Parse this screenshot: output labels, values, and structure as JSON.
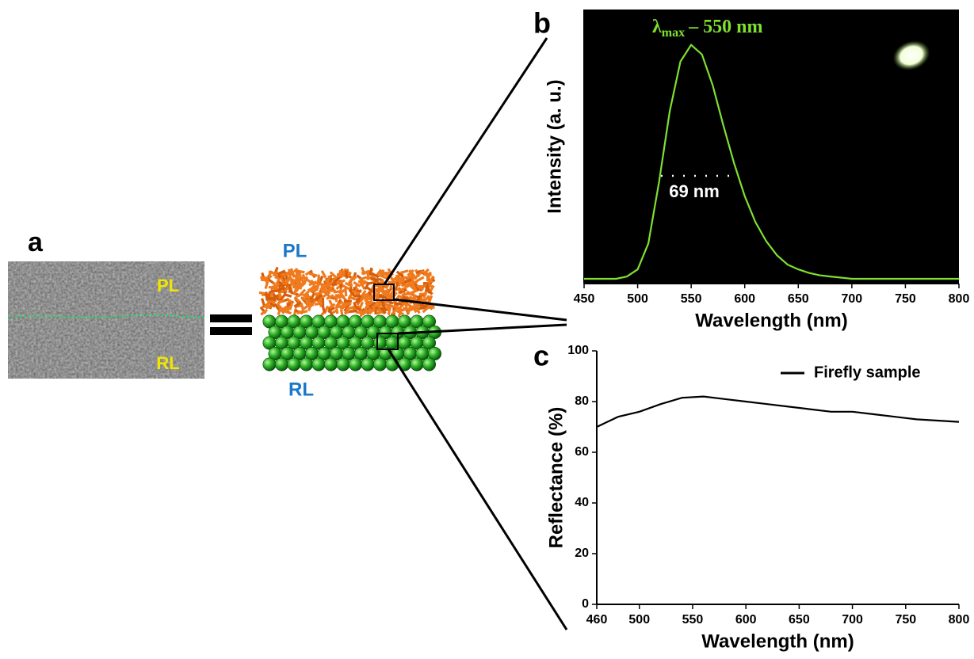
{
  "panel_a": {
    "label": "a",
    "image_labels": [
      "PL",
      "RL"
    ],
    "schematic_labels": [
      "PL",
      "RL"
    ]
  },
  "chart_data": [
    {
      "type": "line",
      "panel_label": "b",
      "xlabel": "Wavelength (nm)",
      "ylabel": "Intensity (a. u.)",
      "peak_label": {
        "symbol": "λ",
        "subscript": "max",
        "text": "– 550 nm"
      },
      "width_label": "69 nm",
      "background": "#000000",
      "x": [
        450,
        460,
        470,
        480,
        490,
        500,
        510,
        520,
        530,
        540,
        550,
        560,
        570,
        580,
        590,
        600,
        610,
        620,
        630,
        640,
        650,
        660,
        670,
        680,
        690,
        700,
        710,
        720,
        730,
        740,
        750,
        760,
        770,
        780,
        790,
        800
      ],
      "series": [
        {
          "color": "#7fe030",
          "values": [
            0.01,
            0.01,
            0.01,
            0.01,
            0.02,
            0.05,
            0.16,
            0.42,
            0.72,
            0.93,
            1.0,
            0.96,
            0.83,
            0.66,
            0.5,
            0.36,
            0.25,
            0.17,
            0.11,
            0.07,
            0.05,
            0.035,
            0.025,
            0.02,
            0.015,
            0.01,
            0.01,
            0.01,
            0.01,
            0.01,
            0.01,
            0.01,
            0.01,
            0.01,
            0.01,
            0.01
          ]
        }
      ],
      "xlim": [
        450,
        800
      ],
      "xticks": [
        450,
        500,
        550,
        600,
        650,
        700,
        750,
        800
      ],
      "ylim": [
        -0.01,
        1.15
      ],
      "grid": false
    },
    {
      "type": "line",
      "panel_label": "c",
      "xlabel": "Wavelength (nm)",
      "ylabel": "Reflectance (%)",
      "x": [
        460,
        480,
        500,
        520,
        540,
        560,
        580,
        600,
        620,
        640,
        660,
        680,
        700,
        720,
        740,
        760,
        780,
        800
      ],
      "series": [
        {
          "name": "Firefly sample",
          "color": "#000000",
          "values": [
            70,
            74,
            76,
            79,
            81.5,
            82,
            81,
            80,
            79,
            78,
            77,
            76,
            76,
            75,
            74,
            73,
            72.5,
            72
          ]
        }
      ],
      "xlim": [
        460,
        800
      ],
      "xticks": [
        460,
        500,
        550,
        600,
        650,
        700,
        750,
        800
      ],
      "ylim": [
        0,
        100
      ],
      "yticks": [
        0,
        20,
        40,
        60,
        80,
        100
      ],
      "legend": "upper right",
      "grid": false
    }
  ]
}
